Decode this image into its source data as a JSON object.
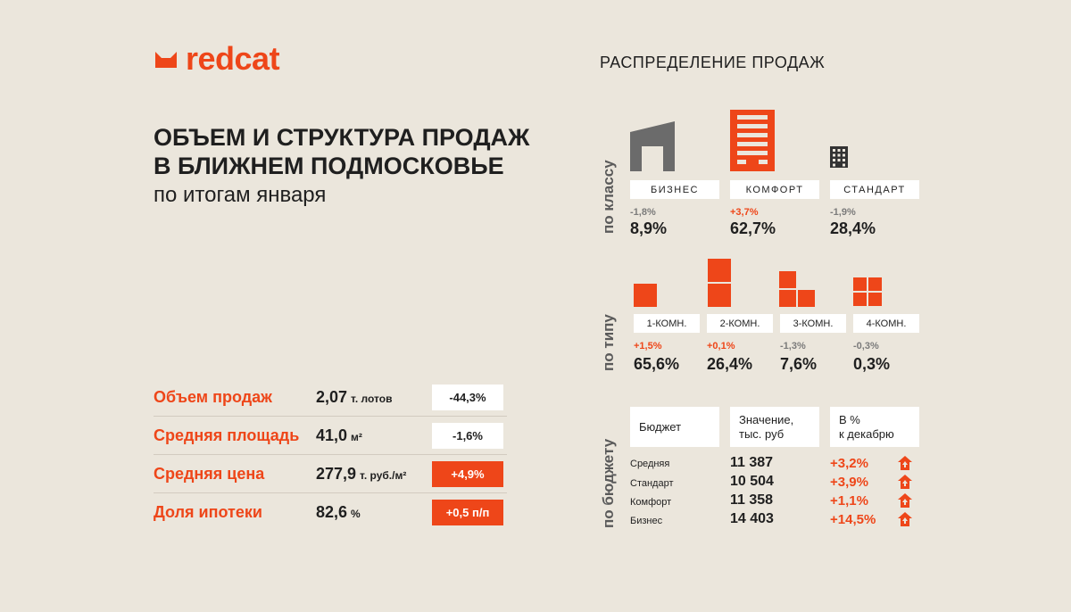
{
  "brand": {
    "name": "redcat",
    "accent": "#ee4619",
    "gray": "#6b6b6b",
    "background": "#ebe6dc"
  },
  "heading": {
    "line1": "ОБЪЕМ И СТРУКТУРА ПРОДАЖ",
    "line2": "В БЛИЖНЕМ ПОДМОСКОВЬЕ",
    "subtitle": "по итогам января"
  },
  "stats": [
    {
      "label": "Объем продаж",
      "value": "2,07",
      "unit": "т. лотов",
      "change": "-44,3%",
      "change_style": "white"
    },
    {
      "label": "Средняя площадь",
      "value": "41,0",
      "unit": "м²",
      "change": "-1,6%",
      "change_style": "white"
    },
    {
      "label": "Средняя цена",
      "value": "277,9",
      "unit": "т. руб./м²",
      "change": "+4,9%",
      "change_style": "orange"
    },
    {
      "label": "Доля ипотеки",
      "value": "82,6",
      "unit": "%",
      "change": "+0,5 п/п",
      "change_style": "orange"
    }
  ],
  "distribution": {
    "title": "РАСПРЕДЕЛЕНИЕ ПРОДАЖ",
    "by_class": {
      "label": "по классу",
      "items": [
        {
          "name": "БИЗНЕС",
          "delta": "-1,8%",
          "share": "8,9%",
          "icon": "business-building-icon"
        },
        {
          "name": "КОМФОРТ",
          "delta": "+3,7%",
          "share": "62,7%",
          "icon": "comfort-building-icon"
        },
        {
          "name": "СТАНДАРТ",
          "delta": "-1,9%",
          "share": "28,4%",
          "icon": "standard-building-icon"
        }
      ]
    },
    "by_type": {
      "label": "по типу",
      "items": [
        {
          "name": "1-КОМН.",
          "delta": "+1,5%",
          "share": "65,6%",
          "icon": "one-room-icon"
        },
        {
          "name": "2-КОМН.",
          "delta": "+0,1%",
          "share": "26,4%",
          "icon": "two-room-icon"
        },
        {
          "name": "3-КОМН.",
          "delta": "-1,3%",
          "share": "7,6%",
          "icon": "three-room-icon"
        },
        {
          "name": "4-КОМН.",
          "delta": "-0,3%",
          "share": "0,3%",
          "icon": "four-room-icon"
        }
      ]
    },
    "by_budget": {
      "label": "по бюджету",
      "headers": [
        "Бюджет",
        "Значение,",
        "тыс. руб",
        "В %",
        "к декабрю"
      ],
      "rows": [
        {
          "name": "Средняя",
          "value": "11 387",
          "pct": "+3,2%",
          "icon": "house-up-icon"
        },
        {
          "name": "Стандарт",
          "value": "10 504",
          "pct": "+3,9%",
          "icon": "house-up-icon"
        },
        {
          "name": "Комфорт",
          "value": "11 358",
          "pct": "+1,1%",
          "icon": "house-up-icon"
        },
        {
          "name": "Бизнес",
          "value": "14 403",
          "pct": "+14,5%",
          "icon": "house-up-icon"
        }
      ]
    }
  }
}
